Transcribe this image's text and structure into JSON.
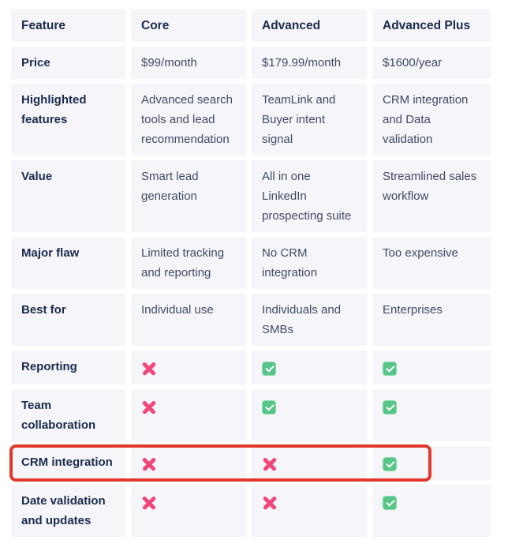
{
  "table": {
    "columns": [
      "Feature",
      "Core",
      "Advanced",
      "Advanced Plus"
    ],
    "rows": [
      {
        "feature": "Price",
        "cells": [
          "$99/month",
          "$179.99/month",
          "$1600/year"
        ]
      },
      {
        "feature": "Highlighted features",
        "cells": [
          "Advanced search tools and lead recommendation",
          "TeamLink and Buyer intent signal",
          "CRM integration and Data validation"
        ]
      },
      {
        "feature": "Value",
        "cells": [
          "Smart lead generation",
          "All in one LinkedIn prospecting suite",
          "Streamlined sales workflow"
        ]
      },
      {
        "feature": "Major flaw",
        "cells": [
          "Limited tracking and reporting",
          "No CRM integration",
          "Too expensive"
        ]
      },
      {
        "feature": "Best for",
        "cells": [
          "Individual use",
          "Individuals and SMBs",
          "Enterprises"
        ]
      },
      {
        "feature": "Reporting",
        "cells": [
          "cross",
          "check",
          "check"
        ]
      },
      {
        "feature": "Team collaboration",
        "cells": [
          "cross",
          "check",
          "check"
        ]
      },
      {
        "feature": "CRM integration",
        "cells": [
          "cross",
          "cross",
          "check"
        ]
      },
      {
        "feature": "Date validation and updates",
        "cells": [
          "cross",
          "cross",
          "check"
        ]
      }
    ]
  },
  "icons": {
    "cross": {
      "name": "cross-icon",
      "glyph": "✕",
      "color": "#f0477b"
    },
    "check": {
      "name": "check-icon",
      "glyph": "✓",
      "color": "#57c587"
    }
  },
  "annotation": {
    "name": "highlight-box",
    "highlighted_row": "CRM integration",
    "color": "#e0382c"
  },
  "colors": {
    "page-bg": "#ffffff",
    "cell-bg": "#f5f5fa",
    "header-text": "#1a2b4c",
    "body-text": "#3f4b63",
    "cross": "#f0477b",
    "check-bg": "#57c587",
    "check-border": "#8cdcb0",
    "highlight-red": "#e0382c"
  }
}
